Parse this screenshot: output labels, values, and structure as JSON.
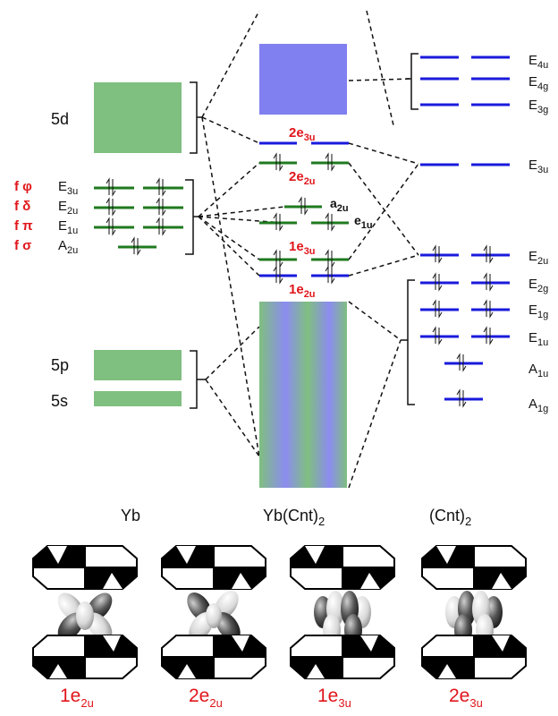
{
  "colors": {
    "green": "#7fbf7f",
    "blue_block": "#8080f0",
    "green_level": "#1f7a1f",
    "blue_level": "#1a1adc",
    "red": "#e0161b"
  },
  "yb": {
    "header": "Yb",
    "d_label": "5d",
    "p_label": "5p",
    "s_label": "5s",
    "f_symbols": [
      {
        "main": "f ",
        "greek": "φ"
      },
      {
        "main": "f ",
        "greek": "δ"
      },
      {
        "main": "f ",
        "greek": "π"
      },
      {
        "main": "f ",
        "greek": "σ"
      }
    ],
    "f_levels": [
      {
        "main": "E",
        "sub": "3u"
      },
      {
        "main": "E",
        "sub": "2u"
      },
      {
        "main": "E",
        "sub": "1u"
      },
      {
        "main": "A",
        "sub": "2u"
      }
    ]
  },
  "complex": {
    "header_main": "Yb(Cnt)",
    "header_sub": "2",
    "labels": {
      "e3u_2": {
        "main": "2e",
        "sub": "3u"
      },
      "e2u_2": {
        "main": "2e",
        "sub": "2u"
      },
      "a2u": {
        "main": "a",
        "sub": "2u"
      },
      "e1u": {
        "main": "e",
        "sub": "1u"
      },
      "e3u_1": {
        "main": "1e",
        "sub": "3u"
      },
      "e2u_1": {
        "main": "1e",
        "sub": "2u"
      }
    }
  },
  "cnt": {
    "header_main": "(Cnt)",
    "header_sub": "2",
    "levels": [
      {
        "main": "E",
        "sub": "4u"
      },
      {
        "main": "E",
        "sub": "4g"
      },
      {
        "main": "E",
        "sub": "3g"
      },
      {
        "main": "E",
        "sub": "3u"
      },
      {
        "main": "E",
        "sub": "2u"
      },
      {
        "main": "E",
        "sub": "2g"
      },
      {
        "main": "E",
        "sub": "1g"
      },
      {
        "main": "E",
        "sub": "1u"
      },
      {
        "main": "A",
        "sub": "1u"
      },
      {
        "main": "A",
        "sub": "1g"
      }
    ]
  },
  "orbitals": [
    {
      "main": "1e",
      "sub": "2u"
    },
    {
      "main": "2e",
      "sub": "2u"
    },
    {
      "main": "1e",
      "sub": "3u"
    },
    {
      "main": "2e",
      "sub": "3u"
    }
  ]
}
